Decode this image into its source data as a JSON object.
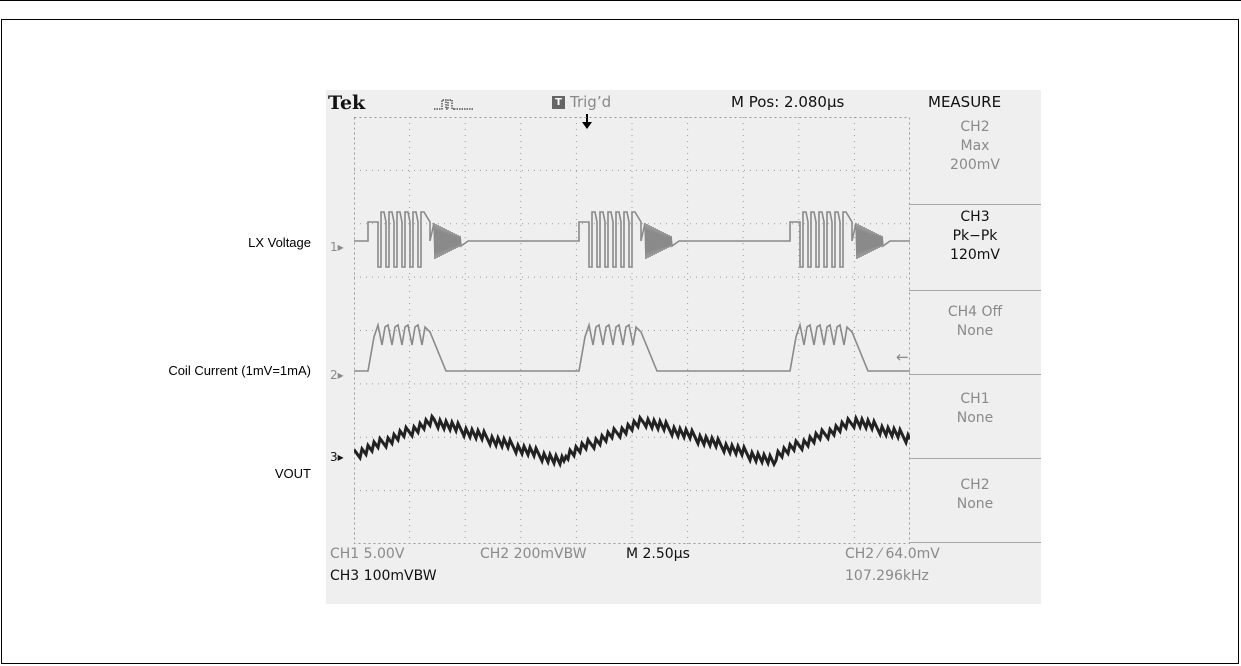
{
  "labels": {
    "lx_voltage": "LX Voltage",
    "coil_current": "Coil Current (1mV=1mA)",
    "vout": "VOUT"
  },
  "header": {
    "brand": "Tek",
    "trig_icon_letter": "T",
    "trig_status": "Trig’d",
    "m_pos": "M Pos: 2.080µs",
    "menu_title": "MEASURE"
  },
  "measure": [
    {
      "line1": "CH2",
      "line2": "Max",
      "line3": "200mV",
      "active": false
    },
    {
      "line1": "CH3",
      "line2": "Pk−Pk",
      "line3": "120mV",
      "active": true
    },
    {
      "line1": "CH4 Off",
      "line2": "None",
      "line3": "",
      "active": false
    },
    {
      "line1": "CH1",
      "line2": "None",
      "line3": "",
      "active": false
    },
    {
      "line1": "CH2",
      "line2": "None",
      "line3": "",
      "active": false
    }
  ],
  "channel_markers": [
    "1",
    "2",
    "3"
  ],
  "footer": {
    "ch1": "CH1  5.00V",
    "ch2": "CH2  200mVBW",
    "time": "M 2.50µs",
    "trigger": "CH2 ⁄ 64.0mV",
    "ch3": "CH3  100mVBW",
    "freq": "107.296kHz"
  },
  "colors": {
    "screen_bg": "#efefef",
    "trace_grey": "#8a8a8a",
    "trace_dark": "#222222",
    "grid": "#9a9a9a"
  }
}
